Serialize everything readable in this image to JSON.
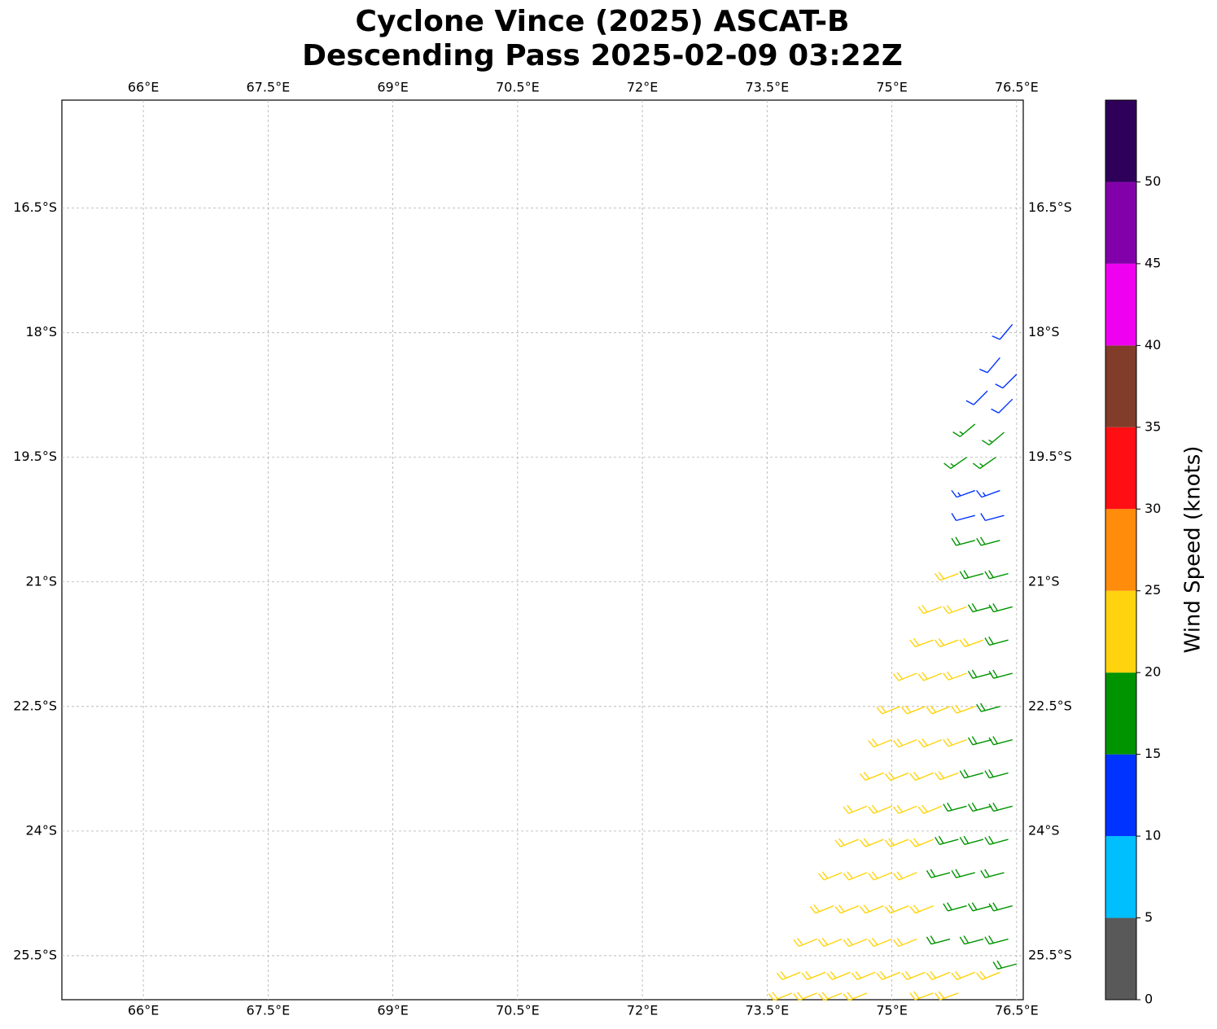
{
  "chart_data": {
    "type": "barb",
    "title": "Cyclone Vince (2025) ASCAT-B",
    "subtitle": "Descending Pass 2025-02-09 03:22Z",
    "xlim": [
      65.02,
      76.58
    ],
    "ylim": [
      -26.03,
      -15.2
    ],
    "xticks": [
      {
        "value": 66,
        "label": "66°E"
      },
      {
        "value": 67.5,
        "label": "67.5°E"
      },
      {
        "value": 69,
        "label": "69°E"
      },
      {
        "value": 70.5,
        "label": "70.5°E"
      },
      {
        "value": 72,
        "label": "72°E"
      },
      {
        "value": 73.5,
        "label": "73.5°E"
      },
      {
        "value": 75,
        "label": "75°E"
      },
      {
        "value": 76.5,
        "label": "76.5°E"
      }
    ],
    "yticks": [
      {
        "value": -16.5,
        "label": "16.5°S"
      },
      {
        "value": -18,
        "label": "18°S"
      },
      {
        "value": -19.5,
        "label": "19.5°S"
      },
      {
        "value": -21,
        "label": "21°S"
      },
      {
        "value": -22.5,
        "label": "22.5°S"
      },
      {
        "value": -24,
        "label": "24°S"
      },
      {
        "value": -25.5,
        "label": "25.5°S"
      }
    ],
    "grid": true,
    "colorbar": {
      "label": "Wind Speed (knots)",
      "levels": [
        0,
        5,
        10,
        15,
        20,
        25,
        30,
        35,
        40,
        45,
        50,
        55
      ],
      "colors": [
        "#595959",
        "#00bfff",
        "#0033ff",
        "#009400",
        "#ffd40f",
        "#ff8c0a",
        "#ff0f14",
        "#823c2a",
        "#f000f0",
        "#8200aa",
        "#2e005a"
      ],
      "ticks": [
        0,
        5,
        10,
        15,
        20,
        25,
        30,
        35,
        40,
        45,
        50
      ]
    },
    "barbs": [
      [
        76.45,
        -17.9,
        12,
        220
      ],
      [
        76.3,
        -18.3,
        12,
        220
      ],
      [
        76.5,
        -18.5,
        12,
        225
      ],
      [
        76.15,
        -18.7,
        12,
        225
      ],
      [
        76.45,
        -18.8,
        12,
        225
      ],
      [
        76.0,
        -19.1,
        17,
        230
      ],
      [
        76.35,
        -19.2,
        17,
        230
      ],
      [
        75.9,
        -19.5,
        17,
        235
      ],
      [
        76.25,
        -19.5,
        17,
        235
      ],
      [
        76.0,
        -19.9,
        13,
        250
      ],
      [
        76.3,
        -19.9,
        13,
        250
      ],
      [
        76.0,
        -20.2,
        12,
        255
      ],
      [
        76.35,
        -20.2,
        12,
        255
      ],
      [
        76.0,
        -20.5,
        18,
        255
      ],
      [
        76.3,
        -20.5,
        18,
        255
      ],
      [
        75.8,
        -20.9,
        22,
        250
      ],
      [
        76.1,
        -20.9,
        18,
        255
      ],
      [
        76.4,
        -20.9,
        18,
        255
      ],
      [
        75.6,
        -21.3,
        22,
        250
      ],
      [
        75.9,
        -21.3,
        22,
        250
      ],
      [
        76.2,
        -21.3,
        18,
        255
      ],
      [
        76.45,
        -21.3,
        18,
        255
      ],
      [
        75.5,
        -21.7,
        22,
        250
      ],
      [
        75.8,
        -21.7,
        22,
        250
      ],
      [
        76.1,
        -21.7,
        22,
        250
      ],
      [
        76.4,
        -21.7,
        18,
        255
      ],
      [
        75.3,
        -22.1,
        22,
        248
      ],
      [
        75.6,
        -22.1,
        22,
        248
      ],
      [
        75.9,
        -22.1,
        22,
        250
      ],
      [
        76.2,
        -22.1,
        18,
        255
      ],
      [
        76.45,
        -22.1,
        18,
        255
      ],
      [
        75.1,
        -22.5,
        22,
        248
      ],
      [
        75.4,
        -22.5,
        22,
        248
      ],
      [
        75.7,
        -22.5,
        22,
        248
      ],
      [
        76.0,
        -22.5,
        22,
        250
      ],
      [
        76.3,
        -22.5,
        18,
        255
      ],
      [
        75.0,
        -22.9,
        22,
        248
      ],
      [
        75.3,
        -22.9,
        22,
        248
      ],
      [
        75.6,
        -22.9,
        22,
        248
      ],
      [
        75.9,
        -22.9,
        22,
        250
      ],
      [
        76.2,
        -22.9,
        18,
        255
      ],
      [
        76.45,
        -22.9,
        18,
        255
      ],
      [
        74.9,
        -23.3,
        22,
        248
      ],
      [
        75.2,
        -23.3,
        22,
        248
      ],
      [
        75.5,
        -23.3,
        22,
        248
      ],
      [
        75.8,
        -23.3,
        22,
        250
      ],
      [
        76.1,
        -23.3,
        18,
        255
      ],
      [
        76.4,
        -23.3,
        18,
        255
      ],
      [
        74.7,
        -23.7,
        22,
        248
      ],
      [
        75.0,
        -23.7,
        22,
        248
      ],
      [
        75.3,
        -23.7,
        22,
        248
      ],
      [
        75.6,
        -23.7,
        22,
        248
      ],
      [
        75.9,
        -23.7,
        18,
        255
      ],
      [
        76.2,
        -23.7,
        18,
        255
      ],
      [
        76.45,
        -23.7,
        18,
        255
      ],
      [
        74.6,
        -24.1,
        22,
        248
      ],
      [
        74.9,
        -24.1,
        22,
        248
      ],
      [
        75.2,
        -24.1,
        22,
        248
      ],
      [
        75.5,
        -24.1,
        22,
        248
      ],
      [
        75.8,
        -24.1,
        18,
        255
      ],
      [
        76.1,
        -24.1,
        18,
        255
      ],
      [
        76.4,
        -24.1,
        18,
        255
      ],
      [
        74.4,
        -24.5,
        22,
        248
      ],
      [
        74.7,
        -24.5,
        22,
        248
      ],
      [
        75.0,
        -24.5,
        22,
        248
      ],
      [
        75.3,
        -24.5,
        22,
        248
      ],
      [
        75.7,
        -24.5,
        18,
        255
      ],
      [
        76.0,
        -24.5,
        18,
        255
      ],
      [
        76.35,
        -24.5,
        18,
        255
      ],
      [
        74.3,
        -24.9,
        22,
        248
      ],
      [
        74.6,
        -24.9,
        22,
        248
      ],
      [
        74.9,
        -24.9,
        22,
        248
      ],
      [
        75.2,
        -24.9,
        22,
        248
      ],
      [
        75.5,
        -24.9,
        22,
        248
      ],
      [
        75.9,
        -24.9,
        18,
        255
      ],
      [
        76.2,
        -24.9,
        18,
        255
      ],
      [
        76.45,
        -24.9,
        18,
        255
      ],
      [
        74.1,
        -25.3,
        22,
        248
      ],
      [
        74.4,
        -25.3,
        22,
        248
      ],
      [
        74.7,
        -25.3,
        22,
        248
      ],
      [
        75.0,
        -25.3,
        22,
        248
      ],
      [
        75.3,
        -25.3,
        22,
        248
      ],
      [
        75.7,
        -25.3,
        18,
        255
      ],
      [
        76.1,
        -25.3,
        18,
        255
      ],
      [
        76.4,
        -25.3,
        18,
        255
      ],
      [
        73.9,
        -25.7,
        22,
        248
      ],
      [
        74.2,
        -25.7,
        22,
        248
      ],
      [
        74.5,
        -25.7,
        22,
        248
      ],
      [
        74.8,
        -25.7,
        22,
        248
      ],
      [
        75.1,
        -25.7,
        22,
        248
      ],
      [
        75.4,
        -25.7,
        22,
        248
      ],
      [
        75.7,
        -25.7,
        22,
        248
      ],
      [
        76.0,
        -25.7,
        22,
        248
      ],
      [
        76.3,
        -25.7,
        22,
        248
      ],
      [
        76.5,
        -25.6,
        18,
        255
      ],
      [
        73.8,
        -25.95,
        22,
        248
      ],
      [
        74.1,
        -25.95,
        22,
        248
      ],
      [
        74.4,
        -25.95,
        22,
        248
      ],
      [
        74.7,
        -25.95,
        22,
        248
      ],
      [
        75.5,
        -25.95,
        22,
        250
      ],
      [
        75.8,
        -25.95,
        22,
        250
      ]
    ]
  }
}
